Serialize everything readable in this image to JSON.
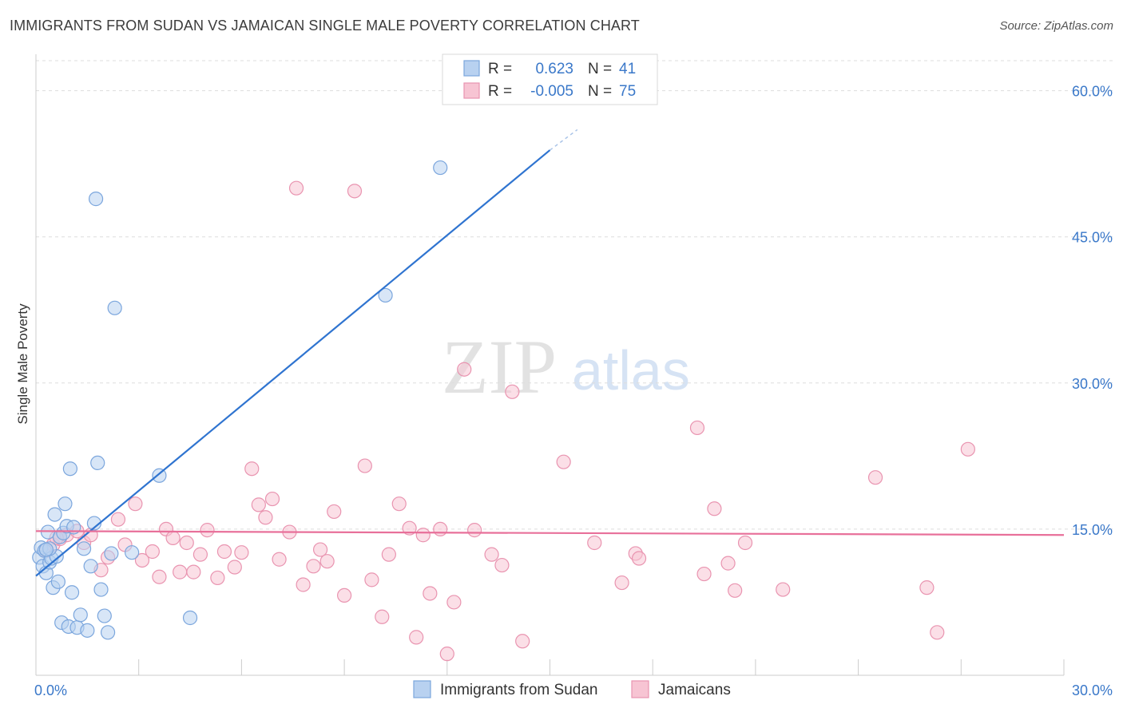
{
  "header": {
    "title": "IMMIGRANTS FROM SUDAN VS JAMAICAN SINGLE MALE POVERTY CORRELATION CHART",
    "source": "Source: ZipAtlas.com"
  },
  "watermark": {
    "zip": "ZIP",
    "atlas": "atlas"
  },
  "stats_legend": {
    "rows": [
      {
        "r_label": "R =",
        "r_value": "0.623",
        "n_label": "N =",
        "n_value": "41"
      },
      {
        "r_label": "R =",
        "r_value": "-0.005",
        "n_label": "N =",
        "n_value": "75"
      }
    ]
  },
  "colors": {
    "sudan_fill": "#b8d1f0",
    "sudan_stroke": "#7ba6dd",
    "sudan_line": "#2f74d0",
    "jamaica_fill": "#f7c4d3",
    "jamaica_stroke": "#e994b0",
    "jamaica_line": "#e8709a",
    "axis_text": "#3a78c9",
    "grid": "#dddddd"
  },
  "chart_data": {
    "type": "scatter",
    "title": "IMMIGRANTS FROM SUDAN VS JAMAICAN SINGLE MALE POVERTY CORRELATION CHART",
    "xlabel": "",
    "ylabel": "Single Male Poverty",
    "xlim": [
      0,
      30
    ],
    "ylim": [
      0,
      63
    ],
    "x_tick_labels": [
      "0.0%",
      "30.0%"
    ],
    "y_ticks": [
      15,
      30,
      45,
      60
    ],
    "y_tick_labels": [
      "15.0%",
      "30.0%",
      "45.0%",
      "60.0%"
    ],
    "grid": "horizontal dashed",
    "legend_position": "bottom-center",
    "series": [
      {
        "name": "Immigrants from Sudan",
        "color": "#b8d1f0",
        "trend": {
          "x": [
            0.0,
            15.0
          ],
          "y": [
            10.2,
            53.9
          ],
          "dashed_to": [
            15.8,
            56.0
          ]
        },
        "points": [
          [
            0.1,
            12.1
          ],
          [
            0.15,
            13.1
          ],
          [
            0.2,
            11.2
          ],
          [
            0.25,
            12.8
          ],
          [
            0.3,
            10.5
          ],
          [
            0.35,
            14.7
          ],
          [
            0.4,
            11.6
          ],
          [
            0.45,
            12.0
          ],
          [
            0.5,
            9.0
          ],
          [
            0.55,
            16.5
          ],
          [
            0.6,
            12.2
          ],
          [
            0.65,
            9.6
          ],
          [
            0.7,
            14.2
          ],
          [
            0.75,
            5.4
          ],
          [
            0.8,
            14.6
          ],
          [
            0.85,
            17.6
          ],
          [
            0.9,
            15.3
          ],
          [
            0.95,
            5.0
          ],
          [
            1.0,
            21.2
          ],
          [
            1.05,
            8.5
          ],
          [
            1.1,
            15.2
          ],
          [
            1.2,
            4.9
          ],
          [
            1.3,
            6.2
          ],
          [
            1.4,
            13.0
          ],
          [
            1.5,
            4.6
          ],
          [
            1.6,
            11.2
          ],
          [
            1.7,
            15.6
          ],
          [
            1.75,
            48.9
          ],
          [
            1.8,
            21.8
          ],
          [
            1.9,
            8.8
          ],
          [
            2.0,
            6.1
          ],
          [
            2.1,
            4.4
          ],
          [
            2.2,
            12.5
          ],
          [
            2.3,
            37.7
          ],
          [
            2.8,
            12.6
          ],
          [
            3.6,
            20.5
          ],
          [
            4.5,
            5.9
          ],
          [
            10.2,
            39.0
          ],
          [
            11.8,
            52.1
          ],
          [
            0.4,
            13.0
          ],
          [
            0.3,
            12.9
          ]
        ]
      },
      {
        "name": "Jamaicans",
        "color": "#f7c4d3",
        "trend": {
          "x": [
            0.0,
            30.0
          ],
          "y": [
            14.8,
            14.4
          ]
        },
        "points": [
          [
            0.3,
            12.8
          ],
          [
            0.5,
            13.4
          ],
          [
            0.7,
            14.0
          ],
          [
            0.9,
            14.4
          ],
          [
            1.2,
            14.8
          ],
          [
            1.4,
            13.6
          ],
          [
            1.6,
            14.4
          ],
          [
            1.9,
            10.8
          ],
          [
            2.1,
            12.1
          ],
          [
            2.4,
            16.0
          ],
          [
            2.6,
            13.4
          ],
          [
            2.9,
            17.6
          ],
          [
            3.1,
            11.8
          ],
          [
            3.4,
            12.7
          ],
          [
            3.6,
            10.1
          ],
          [
            3.8,
            15.0
          ],
          [
            4.0,
            14.1
          ],
          [
            4.2,
            10.6
          ],
          [
            4.4,
            13.6
          ],
          [
            4.6,
            10.6
          ],
          [
            4.8,
            12.4
          ],
          [
            5.0,
            14.9
          ],
          [
            5.3,
            10.0
          ],
          [
            5.5,
            12.7
          ],
          [
            5.8,
            11.1
          ],
          [
            6.0,
            12.6
          ],
          [
            6.3,
            21.2
          ],
          [
            6.5,
            17.5
          ],
          [
            6.7,
            16.2
          ],
          [
            6.9,
            18.1
          ],
          [
            7.1,
            11.9
          ],
          [
            7.4,
            14.7
          ],
          [
            7.6,
            50.0
          ],
          [
            7.8,
            9.3
          ],
          [
            8.1,
            11.2
          ],
          [
            8.3,
            12.9
          ],
          [
            8.5,
            11.7
          ],
          [
            8.7,
            16.8
          ],
          [
            9.0,
            8.2
          ],
          [
            9.3,
            49.7
          ],
          [
            9.6,
            21.5
          ],
          [
            9.8,
            9.8
          ],
          [
            10.1,
            6.0
          ],
          [
            10.3,
            12.4
          ],
          [
            10.6,
            17.6
          ],
          [
            10.9,
            15.1
          ],
          [
            11.1,
            3.9
          ],
          [
            11.3,
            14.4
          ],
          [
            11.5,
            8.4
          ],
          [
            11.8,
            15.0
          ],
          [
            12.0,
            2.2
          ],
          [
            12.2,
            7.5
          ],
          [
            12.5,
            31.4
          ],
          [
            12.8,
            14.9
          ],
          [
            13.3,
            12.4
          ],
          [
            13.6,
            11.3
          ],
          [
            13.9,
            29.1
          ],
          [
            14.2,
            3.5
          ],
          [
            15.4,
            21.9
          ],
          [
            16.3,
            13.6
          ],
          [
            17.1,
            9.5
          ],
          [
            17.5,
            12.5
          ],
          [
            17.6,
            12.0
          ],
          [
            19.3,
            25.4
          ],
          [
            19.5,
            10.4
          ],
          [
            19.8,
            17.1
          ],
          [
            20.2,
            11.5
          ],
          [
            20.4,
            8.7
          ],
          [
            20.7,
            13.6
          ],
          [
            21.8,
            8.8
          ],
          [
            24.5,
            20.3
          ],
          [
            26.0,
            9.0
          ],
          [
            26.3,
            4.4
          ],
          [
            27.2,
            23.2
          ],
          [
            0.6,
            14.1
          ]
        ]
      }
    ]
  },
  "bottom_legend": {
    "items": [
      {
        "label": "Immigrants from Sudan"
      },
      {
        "label": "Jamaicans"
      }
    ]
  }
}
